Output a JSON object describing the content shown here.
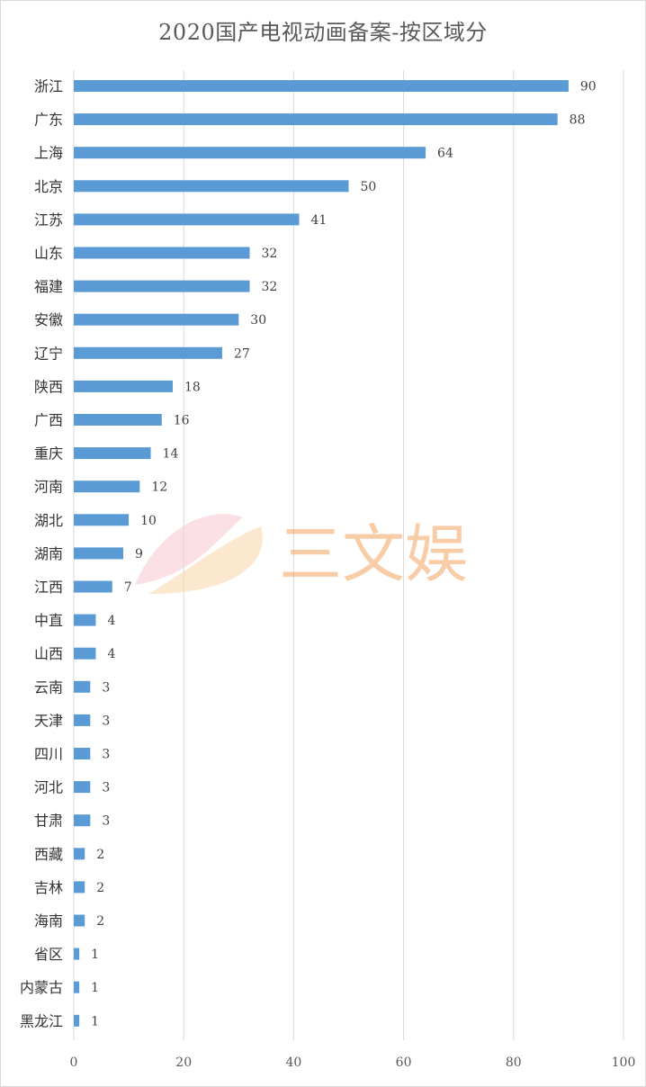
{
  "chart_data": {
    "type": "bar",
    "orientation": "horizontal",
    "title": "2020国产电视动画备案-按区域分",
    "categories": [
      "浙江",
      "广东",
      "上海",
      "北京",
      "江苏",
      "山东",
      "福建",
      "安徽",
      "辽宁",
      "陕西",
      "广西",
      "重庆",
      "河南",
      "湖北",
      "湖南",
      "江西",
      "中直",
      "山西",
      "云南",
      "天津",
      "四川",
      "河北",
      "甘肃",
      "西藏",
      "吉林",
      "海南",
      "省区",
      "内蒙古",
      "黑龙江"
    ],
    "values": [
      90,
      88,
      64,
      50,
      41,
      32,
      32,
      30,
      27,
      18,
      16,
      14,
      12,
      10,
      9,
      7,
      4,
      4,
      3,
      3,
      3,
      3,
      3,
      2,
      2,
      2,
      1,
      1,
      1
    ],
    "xlim": [
      0,
      100
    ],
    "xticks": [
      0,
      20,
      40,
      60,
      80,
      100
    ],
    "grid": "vertical",
    "bar_color": "#5b9bd5"
  },
  "watermark": {
    "text": "三文娱",
    "color": "#f4a460"
  }
}
